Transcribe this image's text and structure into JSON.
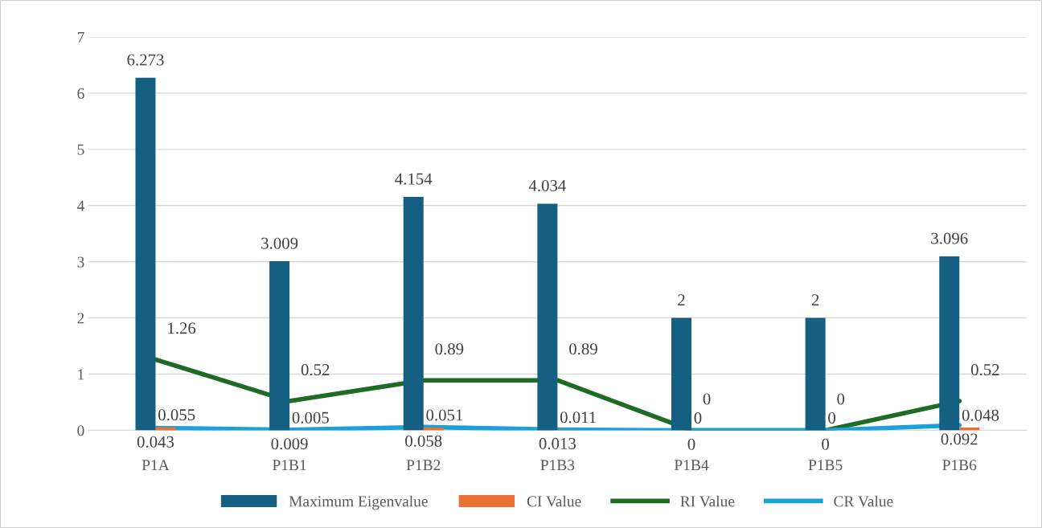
{
  "chart_data": {
    "type": "bar",
    "categories": [
      "P1A",
      "P1B1",
      "P1B2",
      "P1B3",
      "P1B4",
      "P1B5",
      "P1B6"
    ],
    "series": [
      {
        "name": "Maximum Eigenvalue",
        "color": "#156082",
        "values": [
          6.273,
          3.009,
          4.154,
          4.034,
          2,
          2,
          3.096
        ]
      },
      {
        "name": "CI Value",
        "color": "#e97132",
        "values": [
          0.055,
          0.005,
          0.051,
          0.011,
          0,
          0,
          0.048
        ]
      },
      {
        "name": "RI Value",
        "type": "line",
        "color": "#1e6b24",
        "values": [
          1.26,
          0.52,
          0.89,
          0.89,
          0,
          0,
          0.52
        ]
      },
      {
        "name": "CR Value",
        "type": "line",
        "color": "#1ba1d9",
        "values": [
          0.043,
          0.009,
          0.058,
          0.013,
          0,
          0,
          0.092
        ]
      }
    ],
    "ylim": [
      0,
      7
    ],
    "yticks": [
      0,
      1,
      2,
      3,
      4,
      5,
      6,
      7
    ],
    "grid": "y",
    "legend": "bottom",
    "data_labels": true,
    "marker": "none",
    "line_style": "solid"
  }
}
